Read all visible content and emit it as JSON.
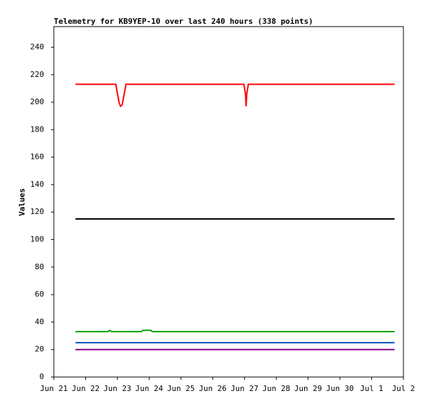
{
  "chart_data": {
    "type": "line",
    "title": "Telemetry for KB9YEP-10 over last 240 hours (338 points)",
    "y_label": "Values",
    "xlim": [
      0,
      11
    ],
    "xticks": [
      {
        "value": 0,
        "label": "Jun 21"
      },
      {
        "value": 1,
        "label": "Jun 22"
      },
      {
        "value": 2,
        "label": "Jun 23"
      },
      {
        "value": 3,
        "label": "Jun 24"
      },
      {
        "value": 4,
        "label": "Jun 25"
      },
      {
        "value": 5,
        "label": "Jun 26"
      },
      {
        "value": 6,
        "label": "Jun 27"
      },
      {
        "value": 7,
        "label": "Jun 28"
      },
      {
        "value": 8,
        "label": "Jun 29"
      },
      {
        "value": 9,
        "label": "Jun 30"
      },
      {
        "value": 10,
        "label": "Jul 1"
      },
      {
        "value": 11,
        "label": "Jul 2"
      }
    ],
    "ylim": [
      0,
      255
    ],
    "yticks": [
      0,
      20,
      40,
      60,
      80,
      100,
      120,
      140,
      160,
      180,
      200,
      220,
      240
    ],
    "series": [
      {
        "color": "#ff0000",
        "x": [
          0.68,
          1.95,
          2.05,
          2.1,
          2.15,
          2.27,
          5.98,
          6.03,
          6.05,
          6.07,
          6.12,
          10.72
        ],
        "values": [
          213,
          213,
          200,
          197,
          198,
          213,
          213,
          206,
          197,
          206,
          213,
          213
        ]
      },
      {
        "color": "#000000",
        "x": [
          0.68,
          10.72
        ],
        "values": [
          115,
          115
        ]
      },
      {
        "color": "#00a000",
        "x": [
          0.68,
          1.7,
          1.76,
          1.82,
          2.75,
          2.8,
          3.05,
          3.1,
          10.72
        ],
        "values": [
          33,
          33,
          34,
          33,
          33,
          34,
          34,
          33,
          33
        ]
      },
      {
        "color": "#0050c0",
        "x": [
          0.68,
          10.72
        ],
        "values": [
          25,
          25
        ]
      },
      {
        "color": "#800080",
        "x": [
          0.68,
          10.72
        ],
        "values": [
          20,
          20
        ]
      }
    ]
  }
}
